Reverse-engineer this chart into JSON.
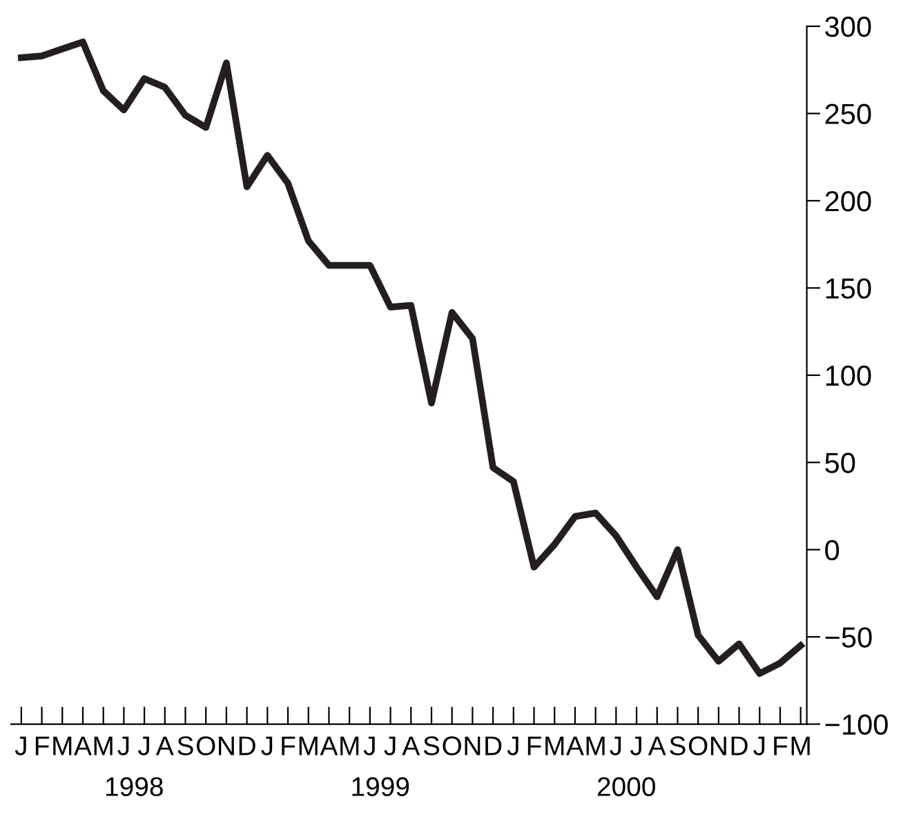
{
  "chart_data": {
    "type": "line",
    "categories": [
      "J",
      "F",
      "M",
      "A",
      "M",
      "J",
      "J",
      "A",
      "S",
      "O",
      "N",
      "D",
      "J",
      "F",
      "M",
      "A",
      "M",
      "J",
      "J",
      "A",
      "S",
      "O",
      "N",
      "D",
      "J",
      "F",
      "M",
      "A",
      "M",
      "J",
      "J",
      "A",
      "S",
      "O",
      "N",
      "D",
      "J",
      "F",
      "M"
    ],
    "series": [
      {
        "color": "#231f20",
        "values": [
          282,
          283,
          287,
          291,
          263,
          252,
          270,
          265,
          249,
          242,
          279,
          208,
          226,
          210,
          177,
          163,
          163,
          163,
          139,
          140,
          84,
          136,
          121,
          47,
          39,
          -10,
          3,
          19,
          21,
          8,
          -10,
          -27,
          0,
          -49,
          -64,
          -54,
          -71,
          -65,
          -55
        ]
      }
    ],
    "ylim": [
      -100,
      300
    ],
    "yticks": [
      -100,
      -50,
      0,
      50,
      100,
      150,
      200,
      250,
      300
    ],
    "annotations": [
      "1998",
      "1999",
      "2000"
    ],
    "grid": false,
    "legend": false,
    "marker": "none",
    "line_style": "solid"
  }
}
